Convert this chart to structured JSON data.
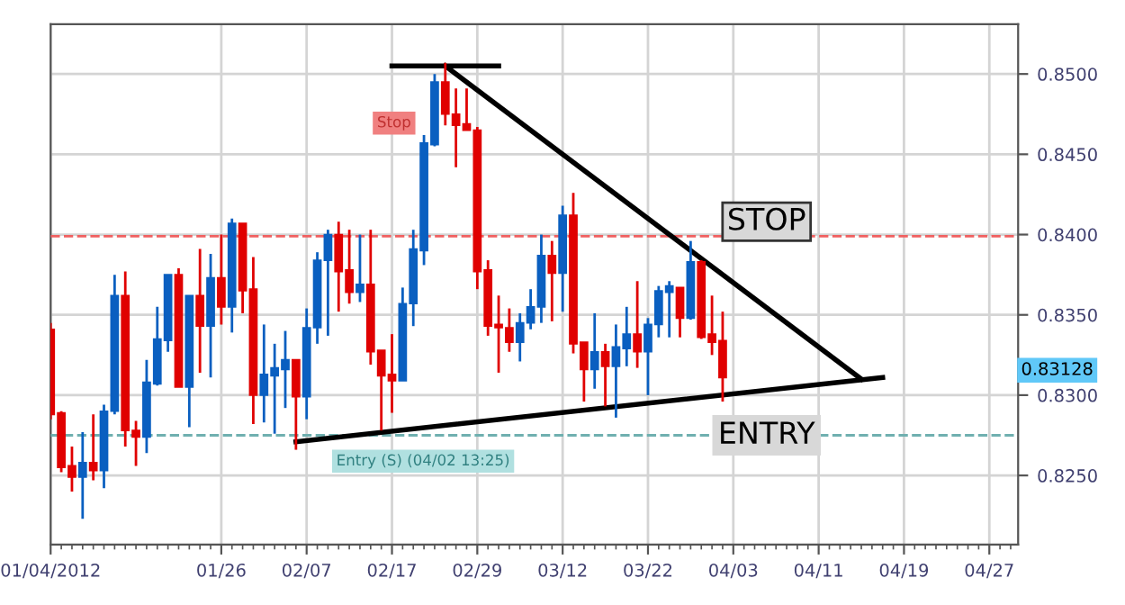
{
  "chart_data": {
    "type": "candlestick",
    "categories": [
      "01/04/2012",
      null,
      null,
      null,
      null,
      null,
      null,
      null,
      null,
      null,
      null,
      null,
      null,
      null,
      null,
      null,
      "01/26",
      null,
      null,
      null,
      null,
      null,
      null,
      null,
      "02/07",
      null,
      null,
      null,
      null,
      null,
      null,
      null,
      "02/17",
      null,
      null,
      null,
      null,
      null,
      null,
      null,
      "02/29",
      null,
      null,
      null,
      null,
      null,
      null,
      null,
      "03/12",
      null,
      null,
      null,
      null,
      null,
      null,
      null,
      "03/22",
      null,
      null,
      null,
      null,
      null,
      null,
      null,
      "04/03",
      null,
      null,
      null,
      null,
      null,
      null,
      null,
      "04/11",
      null,
      null,
      null,
      null,
      null,
      null,
      null,
      "04/19",
      null,
      null,
      null,
      null,
      null,
      null,
      null,
      "04/27",
      null,
      null
    ],
    "ohlc": [
      [
        0.8341,
        0.8345,
        0.8285,
        0.8288
      ],
      [
        0.8289,
        0.829,
        0.8252,
        0.8255
      ],
      [
        0.8256,
        0.8268,
        0.824,
        0.8249
      ],
      [
        0.8249,
        0.8277,
        0.8223,
        0.8258
      ],
      [
        0.8258,
        0.8288,
        0.8247,
        0.8253
      ],
      [
        0.8253,
        0.8294,
        0.8242,
        0.829
      ],
      [
        0.829,
        0.8375,
        0.8288,
        0.8362
      ],
      [
        0.8362,
        0.8377,
        0.8268,
        0.8278
      ],
      [
        0.8278,
        0.8284,
        0.8256,
        0.8274
      ],
      [
        0.8274,
        0.8322,
        0.8264,
        0.8308
      ],
      [
        0.8307,
        0.8355,
        0.8306,
        0.8335
      ],
      [
        0.8334,
        0.8375,
        0.8327,
        0.8375
      ],
      [
        0.8375,
        0.8379,
        0.8305,
        0.8305
      ],
      [
        0.8305,
        0.8362,
        0.828,
        0.8362
      ],
      [
        0.8362,
        0.8391,
        0.8314,
        0.8343
      ],
      [
        0.8343,
        0.8388,
        0.8311,
        0.8373
      ],
      [
        0.8373,
        0.84,
        0.8344,
        0.8355
      ],
      [
        0.8355,
        0.841,
        0.8339,
        0.8407
      ],
      [
        0.8407,
        0.8407,
        0.8351,
        0.8365
      ],
      [
        0.8366,
        0.8386,
        0.8282,
        0.83
      ],
      [
        0.83,
        0.8344,
        0.8283,
        0.8313
      ],
      [
        0.8312,
        0.8332,
        0.8276,
        0.8317
      ],
      [
        0.8316,
        0.834,
        0.8292,
        0.8322
      ],
      [
        0.8322,
        0.8322,
        0.8266,
        0.8299
      ],
      [
        0.8299,
        0.8354,
        0.8285,
        0.8342
      ],
      [
        0.8342,
        0.8389,
        0.8332,
        0.8384
      ],
      [
        0.8384,
        0.8403,
        0.8337,
        0.84
      ],
      [
        0.84,
        0.8408,
        0.8352,
        0.8377
      ],
      [
        0.8378,
        0.8403,
        0.8357,
        0.8364
      ],
      [
        0.8364,
        0.84,
        0.8358,
        0.8369
      ],
      [
        0.8369,
        0.8403,
        0.8319,
        0.8327
      ],
      [
        0.8328,
        0.8328,
        0.8278,
        0.8312
      ],
      [
        0.8313,
        0.8338,
        0.8289,
        0.8309
      ],
      [
        0.8309,
        0.8367,
        0.8309,
        0.8357
      ],
      [
        0.8357,
        0.8403,
        0.8343,
        0.8391
      ],
      [
        0.839,
        0.8462,
        0.8381,
        0.8457
      ],
      [
        0.8456,
        0.85,
        0.8455,
        0.8495
      ],
      [
        0.8495,
        0.8507,
        0.8468,
        0.8475
      ],
      [
        0.8475,
        0.8491,
        0.8442,
        0.8468
      ],
      [
        0.8469,
        0.8491,
        0.8465,
        0.8465
      ],
      [
        0.8465,
        0.8467,
        0.8366,
        0.8377
      ],
      [
        0.8378,
        0.8384,
        0.8337,
        0.8343
      ],
      [
        0.8344,
        0.8362,
        0.8314,
        0.8342
      ],
      [
        0.8342,
        0.8354,
        0.8327,
        0.8333
      ],
      [
        0.8333,
        0.8351,
        0.8321,
        0.8345
      ],
      [
        0.8345,
        0.8366,
        0.8341,
        0.8355
      ],
      [
        0.8355,
        0.84,
        0.8345,
        0.8387
      ],
      [
        0.8387,
        0.8396,
        0.8346,
        0.8376
      ],
      [
        0.8376,
        0.8418,
        0.8352,
        0.8412
      ],
      [
        0.8412,
        0.8426,
        0.8326,
        0.8332
      ],
      [
        0.8333,
        0.8333,
        0.8296,
        0.8316
      ],
      [
        0.8316,
        0.8351,
        0.8304,
        0.8327
      ],
      [
        0.8327,
        0.8332,
        0.8293,
        0.8318
      ],
      [
        0.8318,
        0.8344,
        0.8286,
        0.833
      ],
      [
        0.8329,
        0.8355,
        0.8318,
        0.8338
      ],
      [
        0.8338,
        0.8371,
        0.8317,
        0.8327
      ],
      [
        0.8327,
        0.8348,
        0.83,
        0.8344
      ],
      [
        0.8344,
        0.8368,
        0.8336,
        0.8365
      ],
      [
        0.8364,
        0.8371,
        0.8336,
        0.8368
      ],
      [
        0.8367,
        0.8367,
        0.8336,
        0.8348
      ],
      [
        0.8348,
        0.8396,
        0.8347,
        0.8383
      ],
      [
        0.8383,
        0.8384,
        0.8335,
        0.8336
      ],
      [
        0.8338,
        0.8362,
        0.8325,
        0.8333
      ],
      [
        0.8334,
        0.8352,
        0.8296,
        0.8311
      ],
      null,
      null,
      null,
      null,
      null,
      null,
      null,
      null,
      null,
      null,
      null,
      null,
      null,
      null,
      null,
      null,
      null,
      null,
      null,
      null,
      null,
      null,
      null,
      null,
      null,
      null,
      null
    ],
    "colors": [
      "#e00000",
      "#e00000",
      "#e00000",
      "#0a5fc0",
      "#e00000",
      "#0a5fc0",
      "#0a5fc0",
      "#e00000",
      "#e00000",
      "#0a5fc0",
      "#0a5fc0",
      "#0a5fc0",
      "#e00000",
      "#0a5fc0",
      "#e00000",
      "#0a5fc0",
      "#e00000",
      "#0a5fc0",
      "#e00000",
      "#e00000",
      "#0a5fc0",
      "#0a5fc0",
      "#0a5fc0",
      "#e00000",
      "#0a5fc0",
      "#0a5fc0",
      "#0a5fc0",
      "#e00000",
      "#e00000",
      "#0a5fc0",
      "#e00000",
      "#e00000",
      "#e00000",
      "#0a5fc0",
      "#0a5fc0",
      "#0a5fc0",
      "#0a5fc0",
      "#e00000",
      "#e00000",
      "#e00000",
      "#e00000",
      "#e00000",
      "#e00000",
      "#e00000",
      "#0a5fc0",
      "#0a5fc0",
      "#0a5fc0",
      "#e00000",
      "#0a5fc0",
      "#e00000",
      "#e00000",
      "#0a5fc0",
      "#e00000",
      "#0a5fc0",
      "#0a5fc0",
      "#e00000",
      "#0a5fc0",
      "#0a5fc0",
      "#0a5fc0",
      "#e00000",
      "#0a5fc0",
      "#e00000",
      "#e00000",
      "#e00000",
      null,
      null,
      null,
      null,
      null,
      null,
      null,
      null,
      null,
      null,
      null,
      null,
      null,
      null,
      null,
      null,
      null,
      null,
      null,
      null,
      null,
      null,
      null,
      null,
      null,
      null,
      null
    ],
    "series": [
      {
        "type": "line",
        "color": "#000000",
        "values": [
          null,
          null,
          null,
          null,
          null,
          null,
          null,
          null,
          null,
          null,
          null,
          null,
          null,
          null,
          null,
          null,
          null,
          null,
          null,
          null,
          null,
          null,
          null,
          null,
          null,
          null,
          null,
          null,
          null,
          null,
          null,
          null,
          0.8505,
          null,
          null,
          null,
          null,
          null,
          null,
          null,
          null,
          null,
          0.8505,
          null,
          null,
          null,
          null,
          null,
          null,
          null,
          null,
          null,
          null,
          null,
          null,
          null,
          null,
          null,
          null,
          null,
          null,
          null,
          null,
          null,
          null,
          null,
          null,
          null,
          null,
          null,
          null,
          null,
          null,
          null,
          null,
          null,
          null,
          null,
          null,
          null,
          null,
          null,
          null,
          null,
          null,
          null,
          null,
          null,
          null,
          null,
          null
        ]
      },
      {
        "type": "line",
        "color": "#000000",
        "values": [
          null,
          null,
          null,
          null,
          null,
          null,
          null,
          null,
          null,
          null,
          null,
          null,
          null,
          null,
          null,
          null,
          null,
          null,
          null,
          null,
          null,
          null,
          null,
          null,
          null,
          null,
          null,
          null,
          null,
          null,
          null,
          null,
          null,
          null,
          null,
          null,
          null,
          0.8505,
          null,
          null,
          null,
          null,
          null,
          null,
          null,
          null,
          null,
          null,
          null,
          null,
          null,
          null,
          null,
          null,
          null,
          null,
          null,
          null,
          null,
          null,
          null,
          null,
          null,
          null,
          null,
          null,
          null,
          null,
          null,
          null,
          null,
          null,
          null,
          null,
          null,
          null,
          0.831,
          null,
          null,
          null,
          null,
          null,
          null,
          null,
          null,
          null,
          null,
          null,
          null,
          null,
          null
        ]
      },
      {
        "type": "line",
        "color": "#000000",
        "values": [
          null,
          null,
          null,
          null,
          null,
          null,
          null,
          null,
          null,
          null,
          null,
          null,
          null,
          null,
          null,
          null,
          null,
          null,
          null,
          null,
          null,
          null,
          null,
          0.8271,
          null,
          null,
          null,
          null,
          null,
          null,
          null,
          null,
          null,
          null,
          null,
          null,
          null,
          null,
          null,
          null,
          null,
          null,
          null,
          null,
          null,
          null,
          null,
          null,
          null,
          null,
          null,
          null,
          null,
          null,
          null,
          null,
          null,
          null,
          null,
          null,
          null,
          null,
          null,
          null,
          null,
          null,
          null,
          null,
          null,
          null,
          null,
          null,
          null,
          null,
          null,
          null,
          null,
          null,
          0.8311,
          null,
          null,
          null,
          null,
          null,
          null,
          null,
          null,
          null,
          null,
          null,
          null
        ]
      }
    ],
    "ref_lines": [
      {
        "axis": "y",
        "value": 0.8399,
        "label": "STOP",
        "color": "#f06060",
        "line_style": "dashed"
      },
      {
        "axis": "y",
        "value": 0.8275,
        "label": "ENTRY",
        "color": "#70b0b0",
        "line_style": "dashed"
      }
    ],
    "annotations": [
      "Stop",
      "Entry (S) (04/02 13:25)",
      "0.83128"
    ],
    "ylim": [
      0.8207,
      0.8531
    ],
    "yticks": [
      {
        "value": 0.825,
        "label": "0.8250"
      },
      {
        "value": 0.83,
        "label": "0.8300"
      },
      {
        "value": 0.835,
        "label": "0.8350"
      },
      {
        "value": 0.84,
        "label": "0.8400"
      },
      {
        "value": 0.845,
        "label": "0.8450"
      },
      {
        "value": 0.85,
        "label": "0.8500"
      }
    ],
    "grid": true
  }
}
